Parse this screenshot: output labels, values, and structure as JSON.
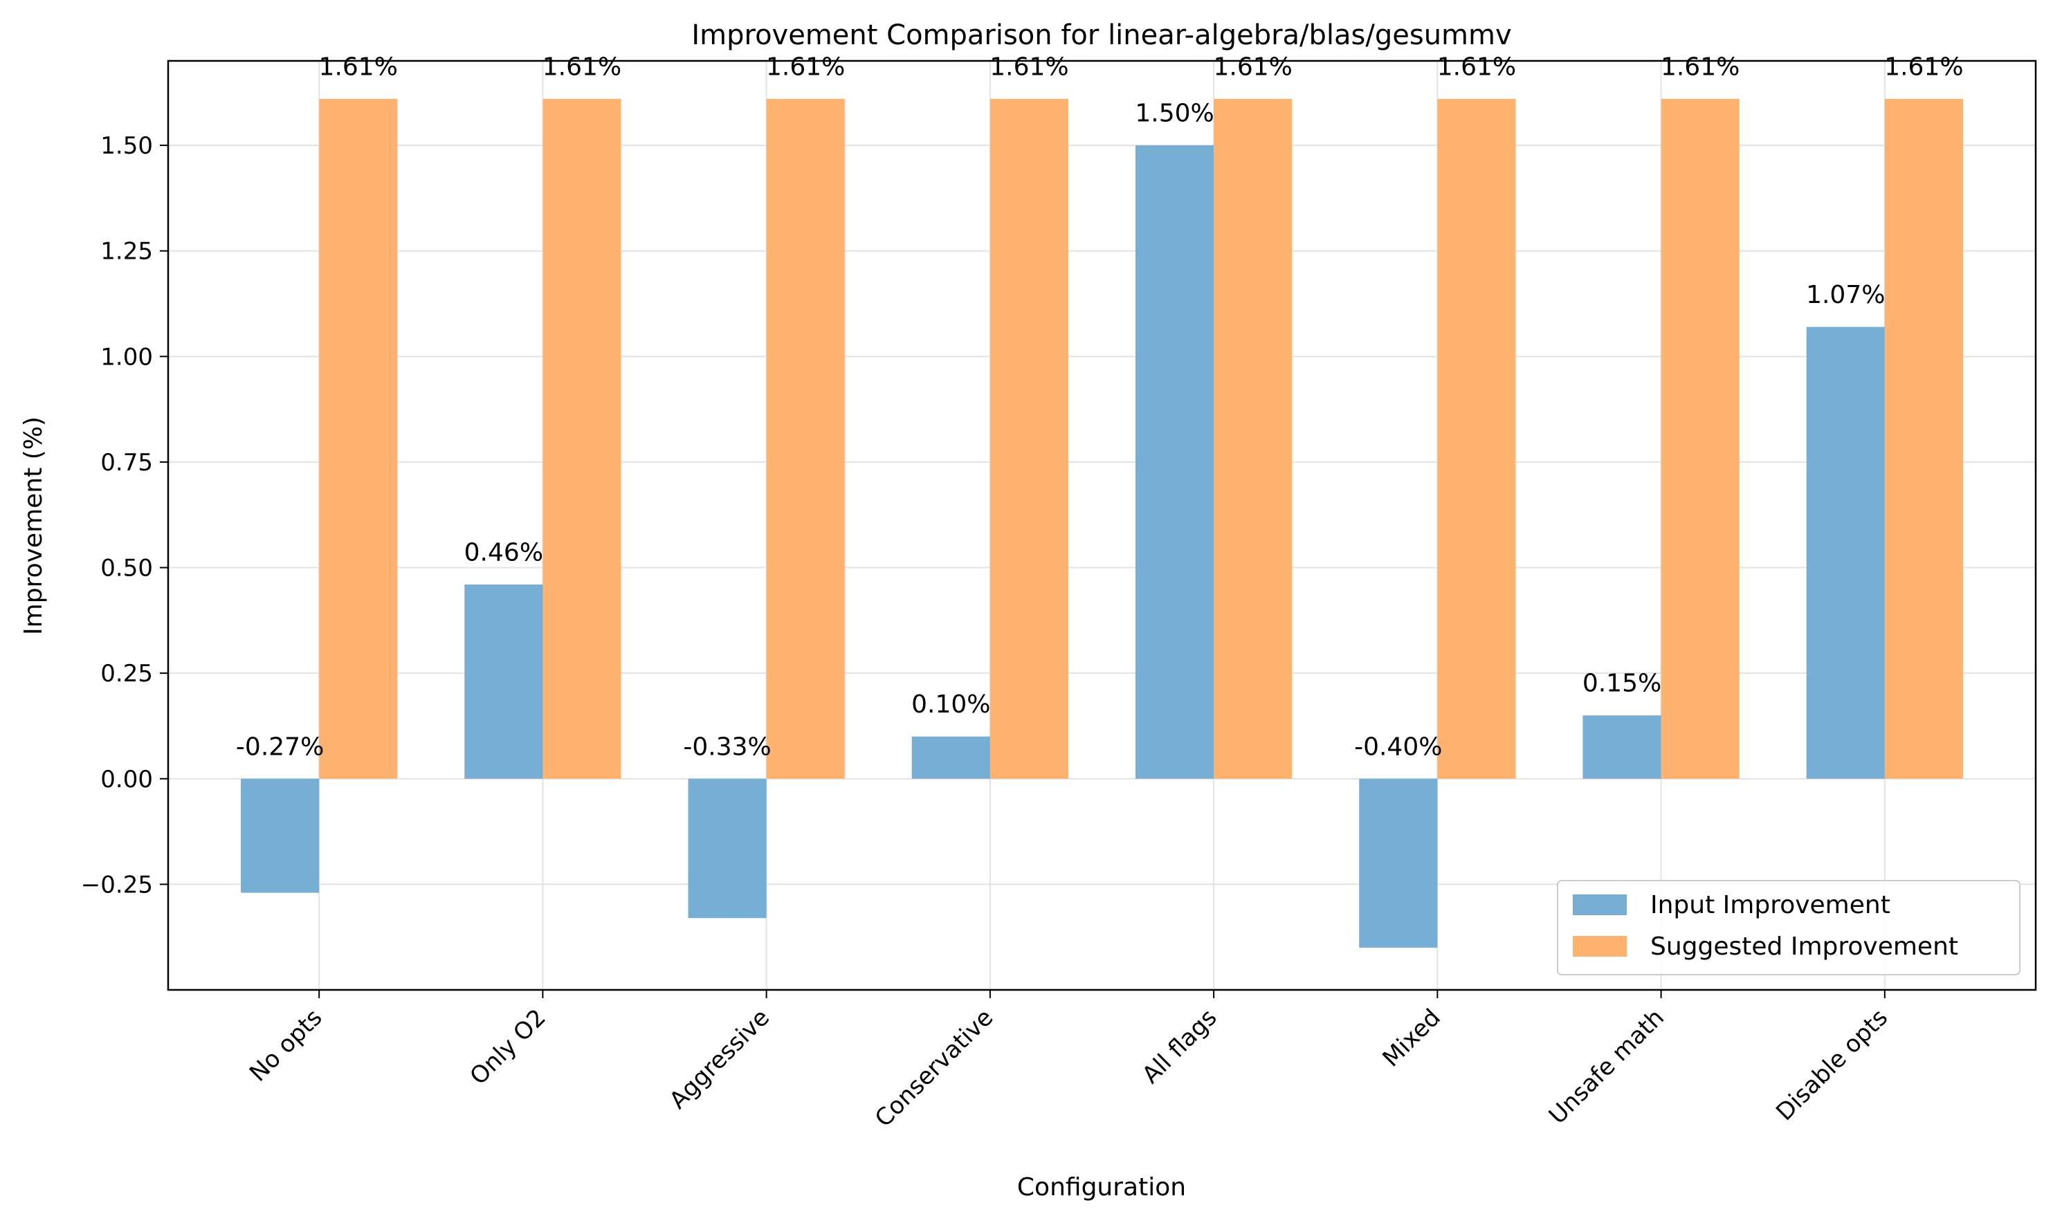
{
  "chart_data": {
    "type": "bar",
    "title": "Improvement Comparison for linear-algebra/blas/gesummv",
    "xlabel": "Configuration",
    "ylabel": "Improvement (%)",
    "categories": [
      "No opts",
      "Only O2",
      "Aggressive",
      "Conservative",
      "All flags",
      "Mixed",
      "Unsafe math",
      "Disable opts"
    ],
    "series": [
      {
        "name": "Input Improvement",
        "color": "#77aed3",
        "values": [
          -0.27,
          0.46,
          -0.33,
          0.1,
          1.5,
          -0.4,
          0.15,
          1.07
        ],
        "labels": [
          "-0.27%",
          "0.46%",
          "-0.33%",
          "0.10%",
          "1.50%",
          "-0.40%",
          "0.15%",
          "1.07%"
        ]
      },
      {
        "name": "Suggested Improvement",
        "color": "#fdb26f",
        "values": [
          1.61,
          1.61,
          1.61,
          1.61,
          1.61,
          1.61,
          1.61,
          1.61
        ],
        "labels": [
          "1.61%",
          "1.61%",
          "1.61%",
          "1.61%",
          "1.61%",
          "1.61%",
          "1.61%",
          "1.61%"
        ]
      }
    ],
    "ylim": [
      -0.5,
      1.7
    ],
    "yticks": [
      -0.25,
      0.0,
      0.25,
      0.5,
      0.75,
      1.0,
      1.25,
      1.5
    ],
    "ytick_labels": [
      "−0.25",
      "0.00",
      "0.25",
      "0.50",
      "0.75",
      "1.00",
      "1.25",
      "1.50"
    ],
    "grid": true,
    "legend_position": "lower-right"
  }
}
